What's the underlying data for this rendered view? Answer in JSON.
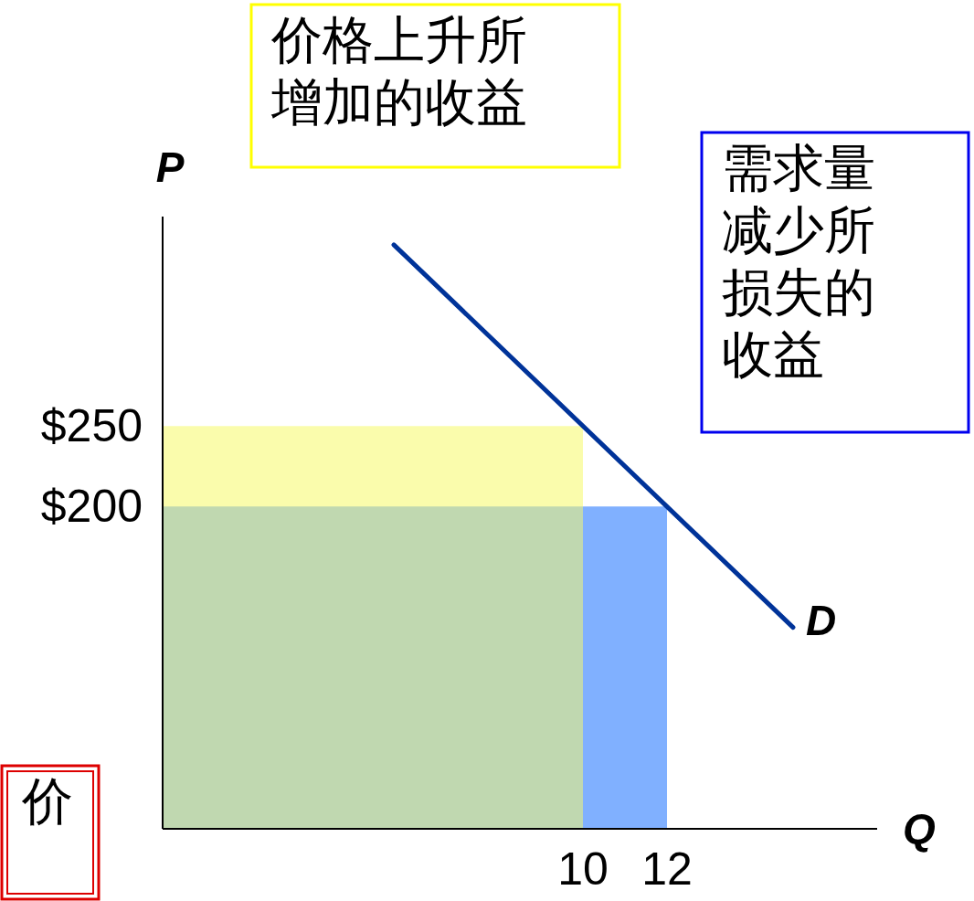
{
  "chart_data": {
    "type": "area",
    "xlabel": "Q",
    "ylabel": "P",
    "xlim": [
      0,
      17
    ],
    "ylim": [
      0,
      380
    ],
    "xticks": [
      10,
      12
    ],
    "yticks": [
      {
        "value": 200,
        "label": "$200"
      },
      {
        "value": 250,
        "label": "$250"
      }
    ],
    "grid": false,
    "series": [
      {
        "color": "#fafcac",
        "x": [
          0,
          10
        ],
        "values": [
          250,
          250
        ]
      },
      {
        "color": "#c0d8b0",
        "x": [
          0,
          10
        ],
        "values": [
          200,
          200
        ]
      },
      {
        "color": "#80b0ff",
        "x": [
          10,
          12
        ],
        "values": [
          200,
          200
        ]
      },
      {
        "type": "line",
        "color": "#003399",
        "x": [
          5.5,
          15
        ],
        "values": [
          362.5,
          125
        ]
      }
    ],
    "annotations": [
      "价格上升所增加的收益",
      "需求量减少所损失的收益",
      "价",
      {
        "text": "D",
        "x": 15,
        "y": 125
      }
    ]
  }
}
